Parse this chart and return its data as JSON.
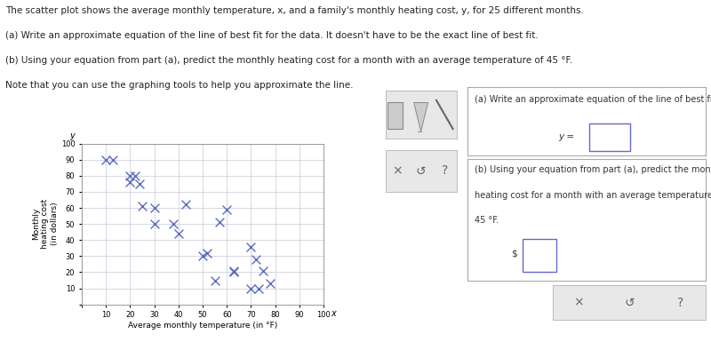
{
  "text_lines": [
    "The scatter plot shows the average monthly temperature, x, and a family's monthly heating cost, y, for 25 different months.",
    "(a) Write an approximate equation of the line of best fit for the data. It doesn't have to be the exact line of best fit.",
    "(b) Using your equation from part (a), predict the monthly heating cost for a month with an average temperature of 45 °F.",
    "Note that you can use the graphing tools to help you approximate the line."
  ],
  "scatter_x": [
    10,
    13,
    20,
    20,
    22,
    24,
    25,
    30,
    30,
    38,
    40,
    43,
    50,
    52,
    55,
    57,
    60,
    63,
    63,
    70,
    70,
    72,
    73,
    75,
    78
  ],
  "scatter_y": [
    90,
    90,
    76,
    80,
    80,
    75,
    61,
    50,
    60,
    50,
    44,
    62,
    30,
    32,
    15,
    51,
    59,
    20,
    21,
    36,
    10,
    28,
    10,
    21,
    13
  ],
  "xlabel": "Average monthly temperature (in °F)",
  "ylabel": "Monthly\nheating cost\n(in dollars)",
  "xlim": [
    0,
    100
  ],
  "ylim": [
    0,
    100
  ],
  "xticks": [
    0,
    10,
    20,
    30,
    40,
    50,
    60,
    70,
    80,
    90,
    100
  ],
  "yticks": [
    0,
    10,
    20,
    30,
    40,
    50,
    60,
    70,
    80,
    90,
    100
  ],
  "marker_color": "#5b6abf",
  "marker": "x",
  "marker_size": 5,
  "bg_color": "#ffffff",
  "plot_bg_color": "#ffffff",
  "grid_color": "#c8c8d8",
  "answer_box_text_a": "(a) Write an approximate equation of the line of best fit.",
  "answer_box_text_b1": "(b) Using your equation from part (a), predict the monthly",
  "answer_box_text_b2": "heating cost for a month with an average temperature of",
  "answer_box_text_b3": "45 °F.",
  "font_size_body": 7.5,
  "font_size_axis": 6.0,
  "font_size_answer": 7.0
}
